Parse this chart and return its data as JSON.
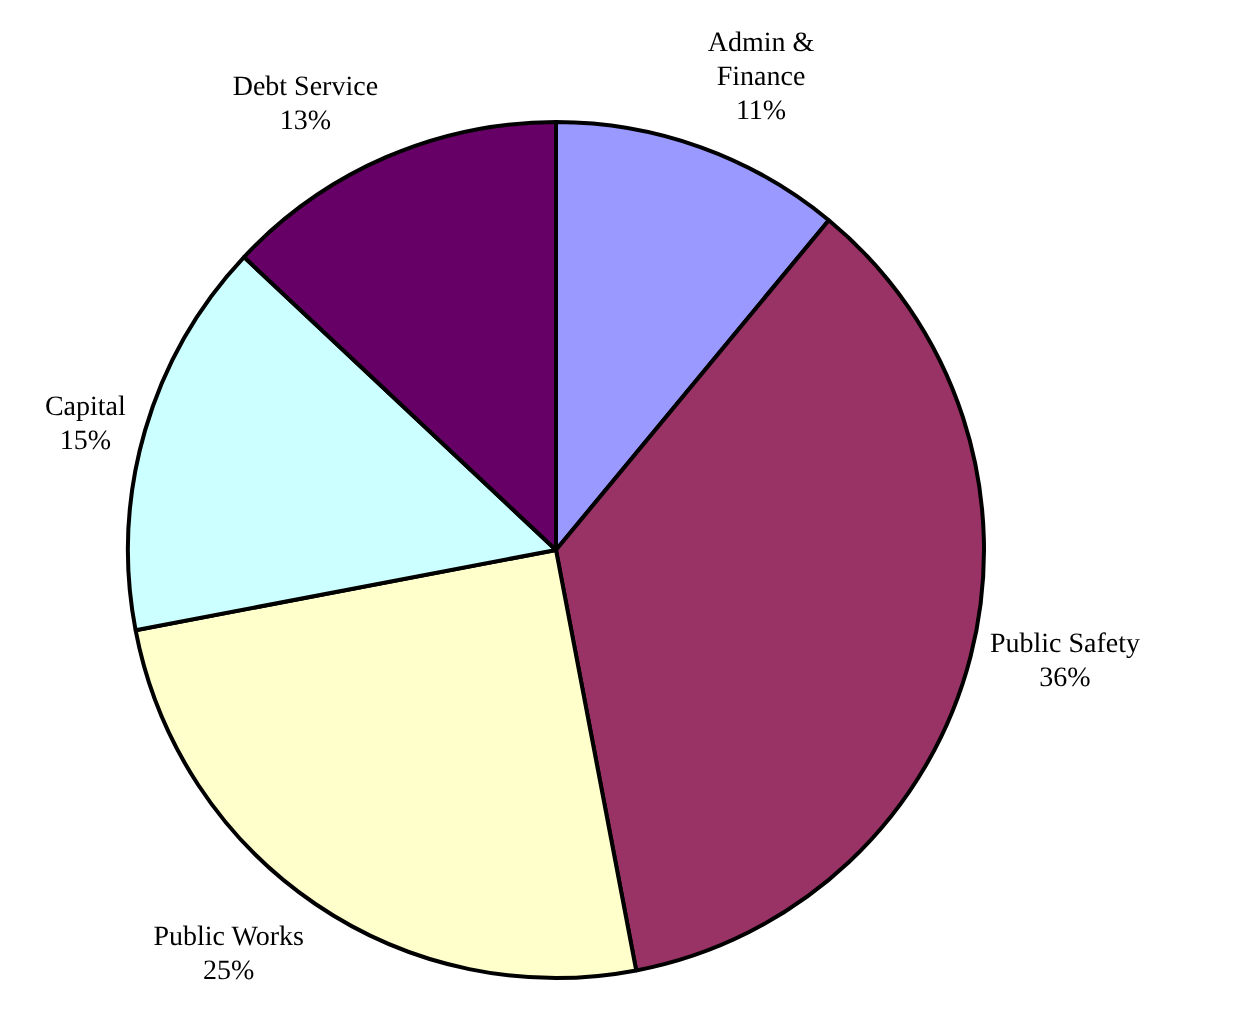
{
  "chart_data": {
    "type": "pie",
    "categories": [
      "Admin &\nFinance",
      "Public Safety",
      "Public Works",
      "Capital",
      "Debt Service"
    ],
    "values": [
      11,
      36,
      25,
      15,
      13
    ],
    "value_labels": [
      "11%",
      "36%",
      "25%",
      "15%",
      "13%"
    ],
    "colors": [
      "#9999ff",
      "#993366",
      "#ffffcc",
      "#ccffff",
      "#660066"
    ],
    "legend": false
  }
}
